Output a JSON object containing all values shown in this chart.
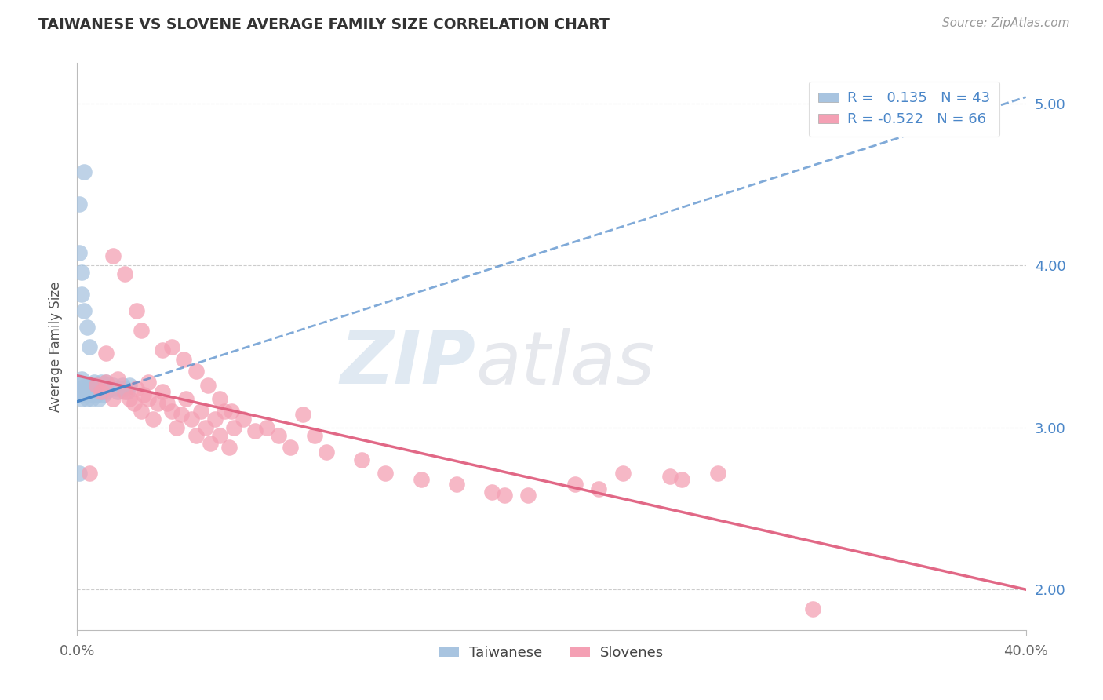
{
  "title": "TAIWANESE VS SLOVENE AVERAGE FAMILY SIZE CORRELATION CHART",
  "source": "Source: ZipAtlas.com",
  "ylabel": "Average Family Size",
  "xlim": [
    0.0,
    0.4
  ],
  "ylim": [
    1.75,
    5.25
  ],
  "yticks": [
    2.0,
    3.0,
    4.0,
    5.0
  ],
  "xticks": [
    0.0,
    0.4
  ],
  "xtick_labels": [
    "0.0%",
    "40.0%"
  ],
  "ytick_labels": [
    "2.00",
    "3.00",
    "4.00",
    "5.00"
  ],
  "legend_r_taiwanese": "0.135",
  "legend_n_taiwanese": "43",
  "legend_r_slovene": "-0.522",
  "legend_n_slovene": "66",
  "taiwanese_color": "#a8c4e0",
  "slovene_color": "#f4a0b4",
  "trend_taiwanese_color": "#4a86c8",
  "trend_slovene_color": "#e06080",
  "watermark_zip": "ZIP",
  "watermark_atlas": "atlas",
  "background_color": "#ffffff",
  "grid_color": "#cccccc",
  "title_color": "#333333",
  "right_ytick_color": "#4a86c8",
  "taiwanese_points": [
    [
      0.001,
      3.28
    ],
    [
      0.001,
      3.22
    ],
    [
      0.002,
      3.3
    ],
    [
      0.002,
      3.18
    ],
    [
      0.003,
      3.25
    ],
    [
      0.003,
      3.2
    ],
    [
      0.004,
      3.22
    ],
    [
      0.004,
      3.18
    ],
    [
      0.005,
      3.26
    ],
    [
      0.005,
      3.2
    ],
    [
      0.006,
      3.24
    ],
    [
      0.006,
      3.18
    ],
    [
      0.007,
      3.28
    ],
    [
      0.007,
      3.22
    ],
    [
      0.008,
      3.26
    ],
    [
      0.008,
      3.2
    ],
    [
      0.009,
      3.24
    ],
    [
      0.009,
      3.18
    ],
    [
      0.01,
      3.28
    ],
    [
      0.01,
      3.22
    ],
    [
      0.011,
      3.25
    ],
    [
      0.011,
      3.2
    ],
    [
      0.012,
      3.28
    ],
    [
      0.012,
      3.22
    ],
    [
      0.013,
      3.26
    ],
    [
      0.014,
      3.24
    ],
    [
      0.015,
      3.26
    ],
    [
      0.016,
      3.24
    ],
    [
      0.002,
      3.82
    ],
    [
      0.003,
      3.72
    ],
    [
      0.004,
      3.62
    ],
    [
      0.001,
      4.08
    ],
    [
      0.002,
      3.96
    ],
    [
      0.003,
      4.58
    ],
    [
      0.001,
      4.38
    ],
    [
      0.001,
      2.72
    ],
    [
      0.017,
      3.22
    ],
    [
      0.018,
      3.24
    ],
    [
      0.019,
      3.26
    ],
    [
      0.02,
      3.24
    ],
    [
      0.021,
      3.22
    ],
    [
      0.022,
      3.26
    ],
    [
      0.005,
      3.5
    ]
  ],
  "slovene_points": [
    [
      0.008,
      3.26
    ],
    [
      0.01,
      3.22
    ],
    [
      0.012,
      3.28
    ],
    [
      0.015,
      3.18
    ],
    [
      0.017,
      3.3
    ],
    [
      0.02,
      3.22
    ],
    [
      0.022,
      3.18
    ],
    [
      0.024,
      3.15
    ],
    [
      0.025,
      3.24
    ],
    [
      0.027,
      3.1
    ],
    [
      0.028,
      3.2
    ],
    [
      0.03,
      3.18
    ],
    [
      0.032,
      3.05
    ],
    [
      0.034,
      3.15
    ],
    [
      0.036,
      3.22
    ],
    [
      0.038,
      3.15
    ],
    [
      0.04,
      3.1
    ],
    [
      0.042,
      3.0
    ],
    [
      0.044,
      3.08
    ],
    [
      0.046,
      3.18
    ],
    [
      0.048,
      3.05
    ],
    [
      0.05,
      2.95
    ],
    [
      0.052,
      3.1
    ],
    [
      0.054,
      3.0
    ],
    [
      0.056,
      2.9
    ],
    [
      0.058,
      3.05
    ],
    [
      0.06,
      2.95
    ],
    [
      0.062,
      3.1
    ],
    [
      0.064,
      2.88
    ],
    [
      0.066,
      3.0
    ],
    [
      0.02,
      3.95
    ],
    [
      0.025,
      3.72
    ],
    [
      0.027,
      3.6
    ],
    [
      0.015,
      4.06
    ],
    [
      0.036,
      3.48
    ],
    [
      0.04,
      3.5
    ],
    [
      0.045,
      3.42
    ],
    [
      0.05,
      3.35
    ],
    [
      0.012,
      3.46
    ],
    [
      0.03,
      3.28
    ],
    [
      0.055,
      3.26
    ],
    [
      0.06,
      3.18
    ],
    [
      0.065,
      3.1
    ],
    [
      0.07,
      3.05
    ],
    [
      0.075,
      2.98
    ],
    [
      0.08,
      3.0
    ],
    [
      0.085,
      2.95
    ],
    [
      0.09,
      2.88
    ],
    [
      0.095,
      3.08
    ],
    [
      0.1,
      2.95
    ],
    [
      0.105,
      2.85
    ],
    [
      0.12,
      2.8
    ],
    [
      0.13,
      2.72
    ],
    [
      0.145,
      2.68
    ],
    [
      0.16,
      2.65
    ],
    [
      0.175,
      2.6
    ],
    [
      0.19,
      2.58
    ],
    [
      0.21,
      2.65
    ],
    [
      0.23,
      2.72
    ],
    [
      0.25,
      2.7
    ],
    [
      0.005,
      2.72
    ],
    [
      0.31,
      1.88
    ],
    [
      0.255,
      2.68
    ],
    [
      0.27,
      2.72
    ],
    [
      0.18,
      2.58
    ],
    [
      0.22,
      2.62
    ]
  ]
}
